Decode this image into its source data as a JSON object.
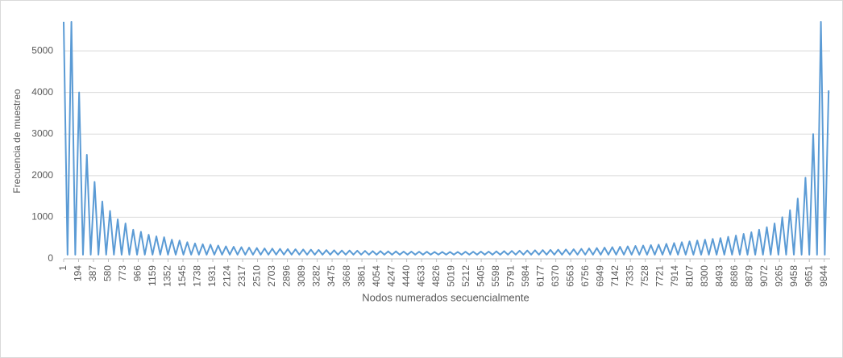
{
  "chart_data": {
    "type": "line",
    "y_label": "Frecuencia de muestreo",
    "x_label": "Nodos numerados secuencialmente",
    "xlim": [
      1,
      9920
    ],
    "xticks": [
      1,
      194,
      387,
      580,
      773,
      966,
      1159,
      1352,
      1545,
      1738,
      1931,
      2124,
      2317,
      2510,
      2703,
      2896,
      3089,
      3282,
      3475,
      3668,
      3861,
      4054,
      4247,
      4440,
      4633,
      4826,
      5019,
      5212,
      5405,
      5598,
      5791,
      5984,
      6177,
      6370,
      6563,
      6756,
      6949,
      7142,
      7335,
      7528,
      7721,
      7914,
      8107,
      8300,
      8493,
      8686,
      8879,
      9072,
      9265,
      9458,
      9651,
      9844
    ],
    "ylim": [
      0,
      5700
    ],
    "yticks": [
      0,
      1000,
      2000,
      3000,
      4000,
      5000
    ],
    "grid": true,
    "x": [
      1,
      51,
      101,
      151,
      201,
      251,
      301,
      351,
      401,
      451,
      501,
      551,
      601,
      651,
      701,
      751,
      801,
      851,
      901,
      951,
      1001,
      1051,
      1101,
      1151,
      1201,
      1251,
      1301,
      1351,
      1401,
      1451,
      1501,
      1551,
      1601,
      1651,
      1701,
      1751,
      1801,
      1851,
      1901,
      1951,
      2001,
      2051,
      2101,
      2151,
      2201,
      2251,
      2301,
      2351,
      2401,
      2451,
      2501,
      2551,
      2601,
      2651,
      2701,
      2751,
      2801,
      2851,
      2901,
      2951,
      3001,
      3051,
      3101,
      3151,
      3201,
      3251,
      3301,
      3351,
      3401,
      3451,
      3501,
      3551,
      3601,
      3651,
      3701,
      3751,
      3801,
      3851,
      3901,
      3951,
      4001,
      4051,
      4101,
      4151,
      4201,
      4251,
      4301,
      4351,
      4401,
      4451,
      4501,
      4551,
      4601,
      4651,
      4701,
      4751,
      4801,
      4851,
      4901,
      4951,
      5001,
      5051,
      5101,
      5151,
      5201,
      5251,
      5301,
      5351,
      5401,
      5451,
      5501,
      5551,
      5601,
      5651,
      5701,
      5751,
      5801,
      5851,
      5901,
      5951,
      6001,
      6051,
      6101,
      6151,
      6201,
      6251,
      6301,
      6351,
      6401,
      6451,
      6501,
      6551,
      6601,
      6651,
      6701,
      6751,
      6801,
      6851,
      6901,
      6951,
      7001,
      7051,
      7101,
      7151,
      7201,
      7251,
      7301,
      7351,
      7401,
      7451,
      7501,
      7551,
      7601,
      7651,
      7701,
      7751,
      7801,
      7851,
      7901,
      7951,
      8001,
      8051,
      8101,
      8151,
      8201,
      8251,
      8301,
      8351,
      8401,
      8451,
      8501,
      8551,
      8601,
      8651,
      8701,
      8751,
      8801,
      8851,
      8901,
      8951,
      9001,
      9051,
      9101,
      9151,
      9201,
      9251,
      9301,
      9351,
      9401,
      9451,
      9501,
      9551,
      9601,
      9651,
      9701,
      9751,
      9801,
      9851,
      9901
    ],
    "series": [
      {
        "color": "#5b9bd5",
        "values": [
          5700,
          100,
          5700,
          100,
          4000,
          100,
          2500,
          100,
          1850,
          100,
          1380,
          100,
          1150,
          100,
          950,
          100,
          850,
          100,
          700,
          100,
          650,
          100,
          580,
          100,
          540,
          100,
          520,
          100,
          460,
          100,
          440,
          100,
          400,
          100,
          370,
          100,
          350,
          100,
          340,
          100,
          320,
          100,
          300,
          100,
          290,
          100,
          280,
          100,
          270,
          100,
          260,
          100,
          250,
          100,
          245,
          100,
          240,
          100,
          235,
          100,
          230,
          100,
          225,
          100,
          220,
          100,
          215,
          100,
          210,
          100,
          205,
          100,
          200,
          100,
          200,
          100,
          195,
          100,
          190,
          100,
          185,
          100,
          185,
          100,
          180,
          100,
          180,
          100,
          175,
          100,
          175,
          100,
          170,
          100,
          170,
          100,
          165,
          100,
          165,
          100,
          165,
          100,
          165,
          100,
          170,
          100,
          170,
          100,
          175,
          100,
          175,
          100,
          180,
          100,
          185,
          100,
          190,
          100,
          195,
          100,
          200,
          100,
          205,
          100,
          210,
          100,
          215,
          100,
          220,
          100,
          225,
          100,
          230,
          100,
          240,
          100,
          250,
          100,
          260,
          100,
          270,
          100,
          280,
          100,
          290,
          100,
          300,
          100,
          310,
          100,
          320,
          100,
          330,
          100,
          340,
          100,
          360,
          100,
          380,
          100,
          400,
          100,
          420,
          100,
          440,
          100,
          460,
          100,
          480,
          100,
          500,
          100,
          530,
          100,
          560,
          100,
          600,
          100,
          640,
          100,
          700,
          100,
          760,
          100,
          850,
          100,
          1000,
          100,
          1170,
          100,
          1450,
          100,
          1950,
          100,
          3000,
          100,
          5700,
          100,
          4050
        ]
      }
    ]
  }
}
